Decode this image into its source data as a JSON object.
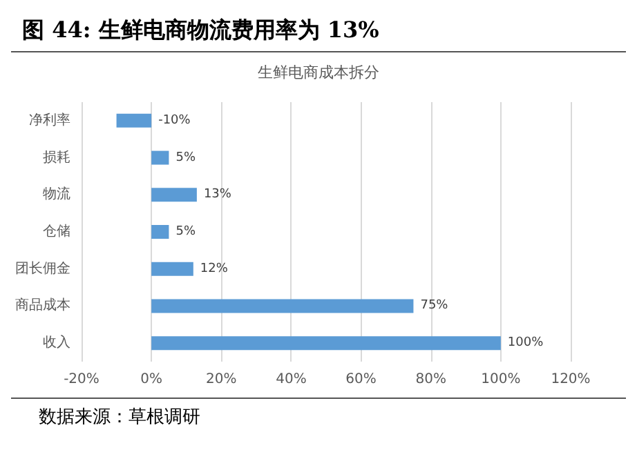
{
  "chart_data": {
    "type": "bar",
    "orientation": "horizontal",
    "title": "图 44: 生鲜电商物流费用率为 13%",
    "subtitle": "生鲜电商成本拆分",
    "categories": [
      "净利率",
      "损耗",
      "物流",
      "仓储",
      "团长佣金",
      "商品成本",
      "收入"
    ],
    "values": [
      -10,
      5,
      13,
      5,
      12,
      75,
      100
    ],
    "value_labels": [
      "-10%",
      "5%",
      "13%",
      "5%",
      "12%",
      "75%",
      "100%"
    ],
    "color": "#5b9bd5",
    "xlim": [
      -20,
      120
    ],
    "xticks": [
      {
        "value": -20,
        "label": "-20%"
      },
      {
        "value": 0,
        "label": "0%"
      },
      {
        "value": 20,
        "label": "20%"
      },
      {
        "value": 40,
        "label": "40%"
      },
      {
        "value": 60,
        "label": "60%"
      },
      {
        "value": 80,
        "label": "80%"
      },
      {
        "value": 100,
        "label": "100%"
      },
      {
        "value": 120,
        "label": "120%"
      }
    ],
    "grid": "x",
    "annotations": [
      "数据来源：草根调研"
    ]
  }
}
